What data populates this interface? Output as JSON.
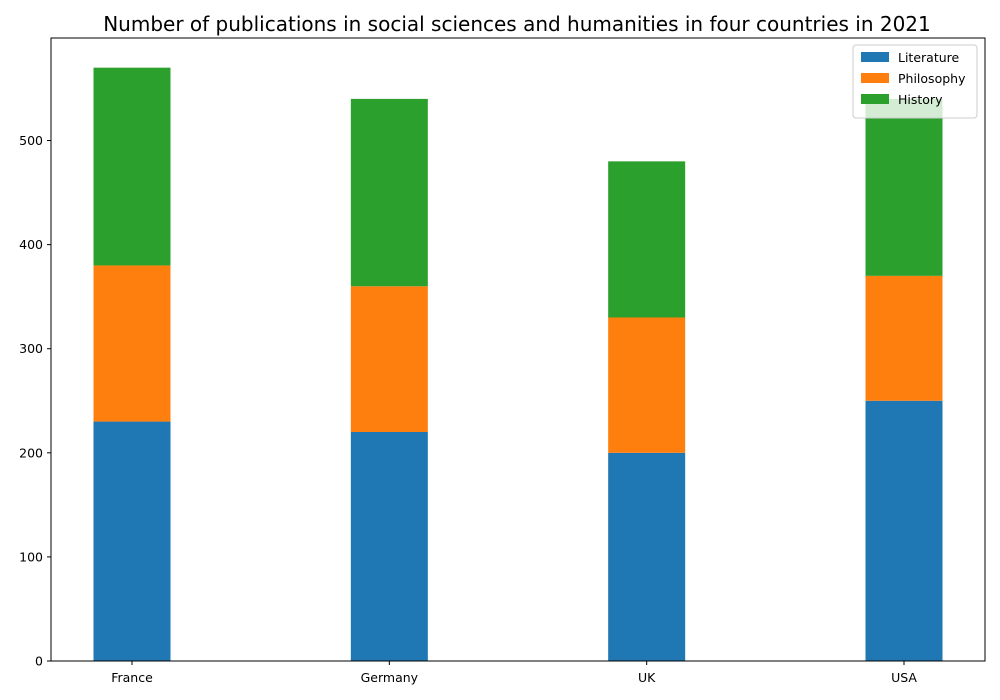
{
  "chart_data": {
    "type": "bar",
    "stacked": true,
    "title": "Number of publications in social sciences and humanities in four countries in 2021",
    "xlabel": "",
    "ylabel": "",
    "categories": [
      "France",
      "Germany",
      "UK",
      "USA"
    ],
    "series": [
      {
        "name": "Literature",
        "values": [
          230,
          220,
          200,
          250
        ],
        "color": "#1f77b4"
      },
      {
        "name": "Philosophy",
        "values": [
          150,
          140,
          130,
          120
        ],
        "color": "#ff7f0e"
      },
      {
        "name": "History",
        "values": [
          190,
          180,
          150,
          170
        ],
        "color": "#2ca02c"
      }
    ],
    "ylim": [
      0,
      598.5
    ],
    "yticks": [
      0,
      100,
      200,
      300,
      400,
      500
    ],
    "grid": false,
    "legend": "top-right"
  }
}
